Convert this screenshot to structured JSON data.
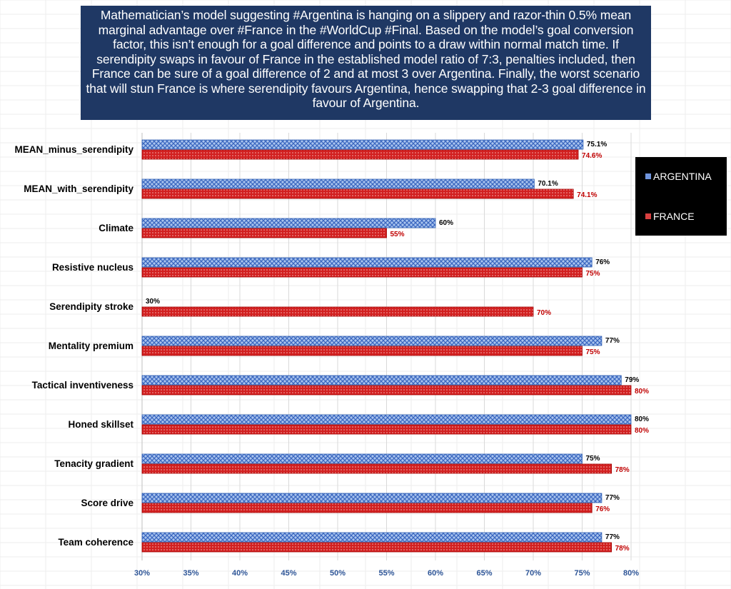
{
  "annotation": "Mathematician’s model suggesting #Argentina is hanging on a slippery and razor-thin 0.5% mean marginal advantage over #France in the #WorldCup #Final. Based on the model’s goal conversion factor, this isn’t enough for a goal difference and points to a draw within normal match time. If serendipity swaps in favour of France in the established model ratio of 7:3, penalties included, then France can be sure of a goal difference of 2 and at most 3 over Argentina. Finally, the worst scenario that will stun France is where serendipity favours Argentina, hence swapping that 2-3 goal difference in favour of Argentina.",
  "colors": {
    "argentina": "#4472c4",
    "france": "#c00000",
    "title_bg": "#1f3864",
    "tick_text": "#2e5597",
    "legend_bg": "#000000"
  },
  "chart_data": {
    "type": "bar",
    "orientation": "horizontal",
    "title": "",
    "xlabel": "",
    "ylabel": "",
    "xlim": [
      30,
      80
    ],
    "x_ticks": [
      30,
      35,
      40,
      45,
      50,
      55,
      60,
      65,
      70,
      75,
      80
    ],
    "tick_suffix": "%",
    "grid": true,
    "legend_position": "right",
    "categories": [
      "MEAN_minus_serendipity",
      "MEAN_with_serendipity",
      "Climate",
      "Resistive nucleus",
      "Serendipity stroke",
      "Mentality premium",
      "Tactical inventiveness",
      "Honed skillset",
      "Tenacity gradient",
      "Score drive",
      "Team coherence"
    ],
    "series": [
      {
        "name": "ARGENTINA",
        "values": [
          75.1,
          70.1,
          60,
          76,
          30,
          77,
          79,
          80,
          75,
          77,
          77
        ],
        "labels": [
          "75.1%",
          "70.1%",
          "60%",
          "76%",
          "30%",
          "77%",
          "79%",
          "80%",
          "75%",
          "77%",
          "77%"
        ]
      },
      {
        "name": "FRANCE",
        "values": [
          74.6,
          74.1,
          55,
          75,
          70,
          75,
          80,
          80,
          78,
          76,
          78
        ],
        "labels": [
          "74.6%",
          "74.1%",
          "55%",
          "75%",
          "70%",
          "75%",
          "80%",
          "80%",
          "78%",
          "76%",
          "78%"
        ]
      }
    ]
  }
}
